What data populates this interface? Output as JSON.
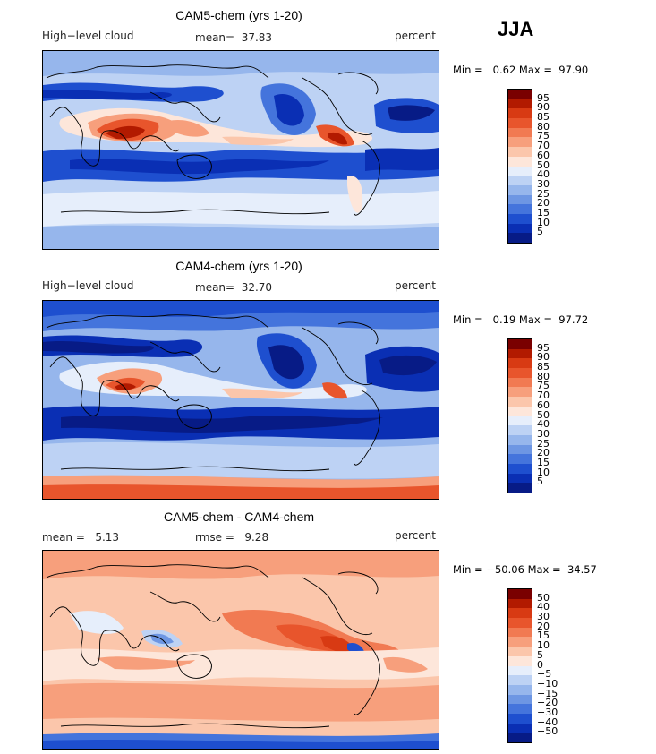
{
  "season": "JJA",
  "panels": [
    {
      "title": "CAM5-chem (yrs 1-20)",
      "left_label": "High−level cloud",
      "center_label": "mean=  37.83",
      "right_label": "percent",
      "minmax": "Min =   0.62 Max =  97.90",
      "colorbar": {
        "labels": [
          "95",
          "90",
          "85",
          "80",
          "75",
          "70",
          "60",
          "50",
          "40",
          "30",
          "25",
          "20",
          "15",
          "10",
          "5"
        ],
        "colors": [
          "#7a0000",
          "#b21a00",
          "#d83a13",
          "#e8552c",
          "#f17a52",
          "#f79f7c",
          "#fbc6ab",
          "#fde6da",
          "#e6eefb",
          "#bdd2f4",
          "#96b6ec",
          "#6d96e3",
          "#4474dc",
          "#1e4fcf",
          "#0a2fb4",
          "#071b86"
        ]
      }
    },
    {
      "title": "CAM4-chem (yrs 1-20)",
      "left_label": "High−level cloud",
      "center_label": "mean=  32.70",
      "right_label": "percent",
      "minmax": "Min =   0.19 Max =  97.72",
      "colorbar": {
        "labels": [
          "95",
          "90",
          "85",
          "80",
          "75",
          "70",
          "60",
          "50",
          "40",
          "30",
          "25",
          "20",
          "15",
          "10",
          "5"
        ],
        "colors": [
          "#7a0000",
          "#b21a00",
          "#d83a13",
          "#e8552c",
          "#f17a52",
          "#f79f7c",
          "#fbc6ab",
          "#fde6da",
          "#e6eefb",
          "#bdd2f4",
          "#96b6ec",
          "#6d96e3",
          "#4474dc",
          "#1e4fcf",
          "#0a2fb4",
          "#071b86"
        ]
      }
    },
    {
      "title": "CAM5-chem - CAM4-chem",
      "left_label": "mean =   5.13",
      "center_label": "rmse =   9.28",
      "right_label": "percent",
      "minmax": "Min = −50.06 Max =  34.57",
      "colorbar": {
        "labels": [
          "50",
          "40",
          "30",
          "20",
          "15",
          "10",
          "5",
          "0",
          "−5",
          "−10",
          "−15",
          "−20",
          "−30",
          "−40",
          "−50"
        ],
        "colors": [
          "#7a0000",
          "#b21a00",
          "#d83a13",
          "#e8552c",
          "#f17a52",
          "#f79f7c",
          "#fbc6ab",
          "#fde6da",
          "#e6eefb",
          "#bdd2f4",
          "#96b6ec",
          "#6d96e3",
          "#4474dc",
          "#1e4fcf",
          "#0a2fb4",
          "#071b86"
        ]
      }
    }
  ]
}
